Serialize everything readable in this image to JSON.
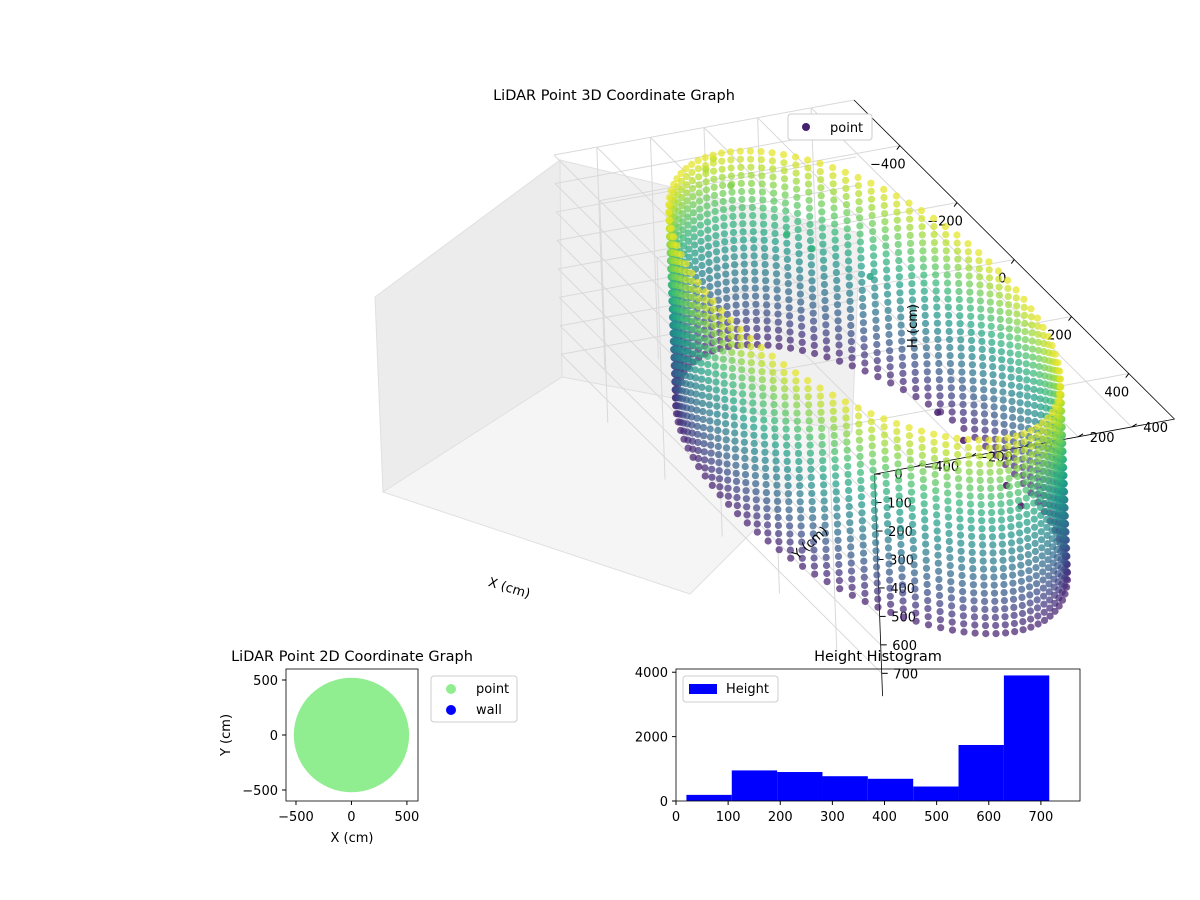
{
  "chart_data": [
    {
      "type": "scatter",
      "projection": "3d",
      "title": "LiDAR Point 3D Coordinate Graph",
      "xlabel": "X (cm)",
      "ylabel": "Y (cm)",
      "zlabel": "H (cm)",
      "xticks": [
        -400,
        -200,
        0,
        200,
        400
      ],
      "yticks": [
        400,
        200,
        0,
        -200,
        -400
      ],
      "zticks": [
        0,
        100,
        200,
        300,
        400,
        500,
        600,
        700
      ],
      "xlim": [
        -560,
        560
      ],
      "ylim": [
        -560,
        560
      ],
      "zlim": [
        780,
        0
      ],
      "z_inverted": true,
      "colormap": "viridis",
      "legend": {
        "placement": "upper right",
        "entries": [
          {
            "label": "point",
            "color": "#46216e"
          }
        ]
      },
      "structure": {
        "shape": "cylinder",
        "radius_cm": 500,
        "height_range_cm": [
          30,
          710
        ]
      },
      "outliers": [
        {
          "x": -530,
          "y": 0,
          "h": 80
        },
        {
          "x": -520,
          "y": -40,
          "h": 100
        },
        {
          "x": -500,
          "y": 30,
          "h": 150
        },
        {
          "x": -420,
          "y": 150,
          "h": 260
        },
        {
          "x": -380,
          "y": 200,
          "h": 280
        },
        {
          "x": -300,
          "y": 330,
          "h": 320
        },
        {
          "x": -200,
          "y": 460,
          "h": 720
        },
        {
          "x": -120,
          "y": 470,
          "h": 740
        },
        {
          "x": 20,
          "y": 480,
          "h": 760
        },
        {
          "x": 80,
          "y": 470,
          "h": 770
        }
      ],
      "grid": true
    },
    {
      "type": "scatter",
      "title": "LiDAR Point 2D Coordinate Graph",
      "xlabel": "X (cm)",
      "ylabel": "Y (cm)",
      "xticks": [
        -500,
        0,
        500
      ],
      "yticks": [
        500,
        0,
        -500
      ],
      "xlim": [
        -590,
        600
      ],
      "ylim": [
        -600,
        600
      ],
      "series": [
        {
          "name": "point",
          "color": "#90ee90",
          "shape": "disk",
          "center": [
            0,
            0
          ],
          "radius": 520
        },
        {
          "name": "wall",
          "color": "#0000ff",
          "points": []
        }
      ],
      "legend": {
        "placement": "outside upper left"
      }
    },
    {
      "type": "bar",
      "title": "Height Histogram",
      "xticks": [
        0,
        100,
        200,
        300,
        400,
        500,
        600,
        700
      ],
      "yticks": [
        0,
        2000,
        4000
      ],
      "xlim": [
        0,
        775
      ],
      "ylim": [
        0,
        4100
      ],
      "series": [
        {
          "name": "Height",
          "color": "#0000ff",
          "bins": [
            {
              "x0": 20,
              "x1": 107,
              "value": 190
            },
            {
              "x0": 107,
              "x1": 194,
              "value": 950
            },
            {
              "x0": 194,
              "x1": 281,
              "value": 900
            },
            {
              "x0": 281,
              "x1": 368,
              "value": 770
            },
            {
              "x0": 368,
              "x1": 455,
              "value": 690
            },
            {
              "x0": 455,
              "x1": 542,
              "value": 450
            },
            {
              "x0": 542,
              "x1": 629,
              "value": 1740
            },
            {
              "x0": 629,
              "x1": 716,
              "value": 3900
            }
          ]
        }
      ],
      "legend": {
        "placement": "upper left"
      }
    }
  ]
}
